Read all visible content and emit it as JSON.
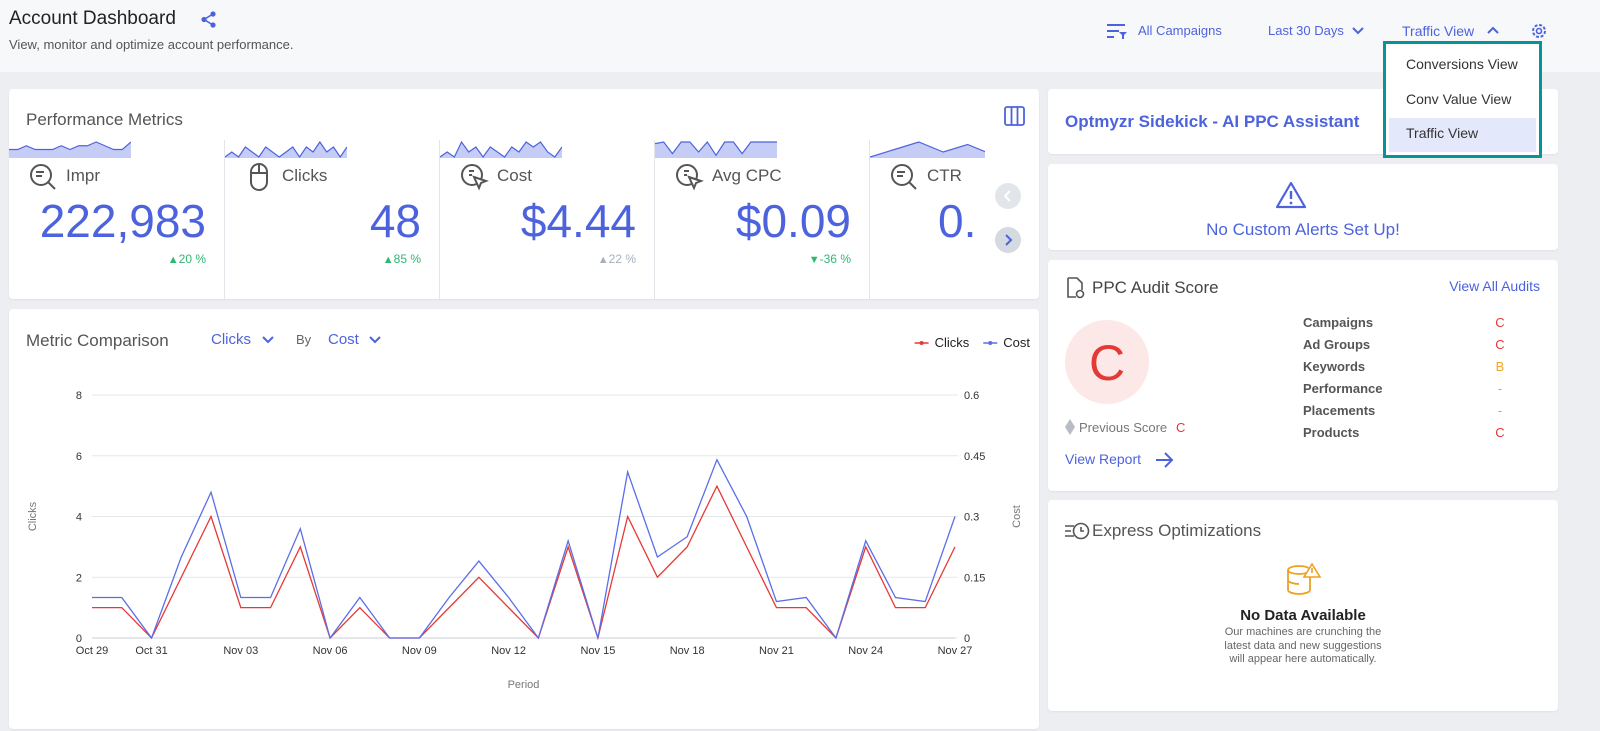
{
  "header": {
    "title": "Account Dashboard",
    "subtitle": "View, monitor and optimize account performance.",
    "filters": [
      "All Campaigns",
      "Last 30 Days",
      "Traffic View"
    ],
    "view_menu": {
      "items": [
        "Conversions View",
        "Conv Value View",
        "Traffic View"
      ],
      "selected": 2
    }
  },
  "performance": {
    "title": "Performance Metrics",
    "metrics": [
      {
        "name": "Impr",
        "value": "222,983",
        "change": "20 %",
        "trend": "up",
        "color": "#2eb872",
        "sparkline": [
          2,
          2,
          3,
          2,
          2,
          2,
          3,
          2,
          3,
          3,
          4,
          3,
          2,
          2,
          4
        ]
      },
      {
        "name": "Clicks",
        "value": "48",
        "change": "85 %",
        "trend": "up",
        "color": "#2eb872",
        "sparkline": [
          0,
          1,
          0,
          2,
          1,
          0,
          2,
          1,
          0,
          1,
          2,
          0,
          2,
          1,
          3,
          1,
          2,
          0,
          2
        ]
      },
      {
        "name": "Cost",
        "value": "$4.44",
        "change": "22 %",
        "trend": "up",
        "color": "#a8afbd",
        "sparkline": [
          0,
          1,
          0,
          3,
          1,
          2,
          0,
          2,
          1,
          0,
          2,
          1,
          3,
          2,
          3,
          1,
          0,
          2
        ]
      },
      {
        "name": "Avg CPC",
        "value": "$0.09",
        "change": "-36 %",
        "trend": "down",
        "color": "#2eb872",
        "sparkline": [
          8,
          9,
          2,
          9,
          9,
          3,
          9,
          1,
          9,
          9,
          2,
          9,
          9,
          9,
          9
        ]
      },
      {
        "name": "CTR",
        "value": "0.",
        "sparkline": [
          0,
          3,
          6,
          2,
          5,
          1
        ]
      }
    ]
  },
  "comparison": {
    "title": "Metric Comparison",
    "metric": "Clicks",
    "by_label": "By",
    "by_metric": "Cost"
  },
  "chart_data": {
    "type": "line",
    "categories": [
      "Oct 29",
      null,
      "Oct 31",
      null,
      null,
      "Nov 03",
      null,
      null,
      "Nov 06",
      null,
      null,
      "Nov 09",
      null,
      null,
      "Nov 12",
      null,
      null,
      "Nov 15",
      null,
      null,
      "Nov 18",
      null,
      null,
      "Nov 21",
      null,
      null,
      "Nov 24",
      null,
      null,
      "Nov 27"
    ],
    "series": [
      {
        "name": "Clicks",
        "color": "#e53935",
        "values": [
          1,
          1,
          0,
          2,
          4,
          1,
          1,
          3,
          0,
          1,
          0,
          0,
          1,
          2,
          1,
          0,
          3,
          0,
          4,
          2,
          3,
          5,
          3,
          1,
          1,
          0,
          3,
          1,
          1,
          3
        ]
      },
      {
        "name": "Cost",
        "color": "#5b6ee8",
        "axis": "y2",
        "values": [
          0.1,
          0.1,
          0,
          0.2,
          0.36,
          0.1,
          0.1,
          0.27,
          0,
          0.1,
          0,
          0,
          0.1,
          0.19,
          0.1,
          0,
          0.24,
          0,
          0.41,
          0.2,
          0.25,
          0.44,
          0.3,
          0.09,
          0.1,
          0,
          0.24,
          0.1,
          0.09,
          0.3
        ]
      }
    ],
    "xlabel": "Period",
    "ylabel": "Clicks",
    "y2label": "Cost",
    "ylim": [
      0,
      8
    ],
    "yticks": [
      0,
      2,
      4,
      6,
      8
    ],
    "y2lim": [
      0,
      0.6
    ],
    "y2ticks": [
      0,
      0.15,
      0.3,
      0.45,
      0.6
    ],
    "grid": true,
    "legend": "top-right"
  },
  "sidekick": {
    "title": "Optmyzr Sidekick - AI PPC Assistant"
  },
  "alerts": {
    "message": "No Custom Alerts Set Up!"
  },
  "audit": {
    "title": "PPC Audit Score",
    "link": "View All Audits",
    "grade": "C",
    "previous_label": "Previous Score",
    "previous_grade": "C",
    "report_link": "View Report",
    "rows": [
      [
        "Campaigns",
        "C"
      ],
      [
        "Ad Groups",
        "C"
      ],
      [
        "Keywords",
        "B"
      ],
      [
        "Performance",
        "-"
      ],
      [
        "Placements",
        "-"
      ],
      [
        "Products",
        "C"
      ]
    ]
  },
  "express": {
    "title": "Express Optimizations",
    "empty_title": "No Data Available",
    "empty_lines": [
      "Our machines are crunching the",
      "latest data and new suggestions",
      "will appear here automatically."
    ]
  }
}
